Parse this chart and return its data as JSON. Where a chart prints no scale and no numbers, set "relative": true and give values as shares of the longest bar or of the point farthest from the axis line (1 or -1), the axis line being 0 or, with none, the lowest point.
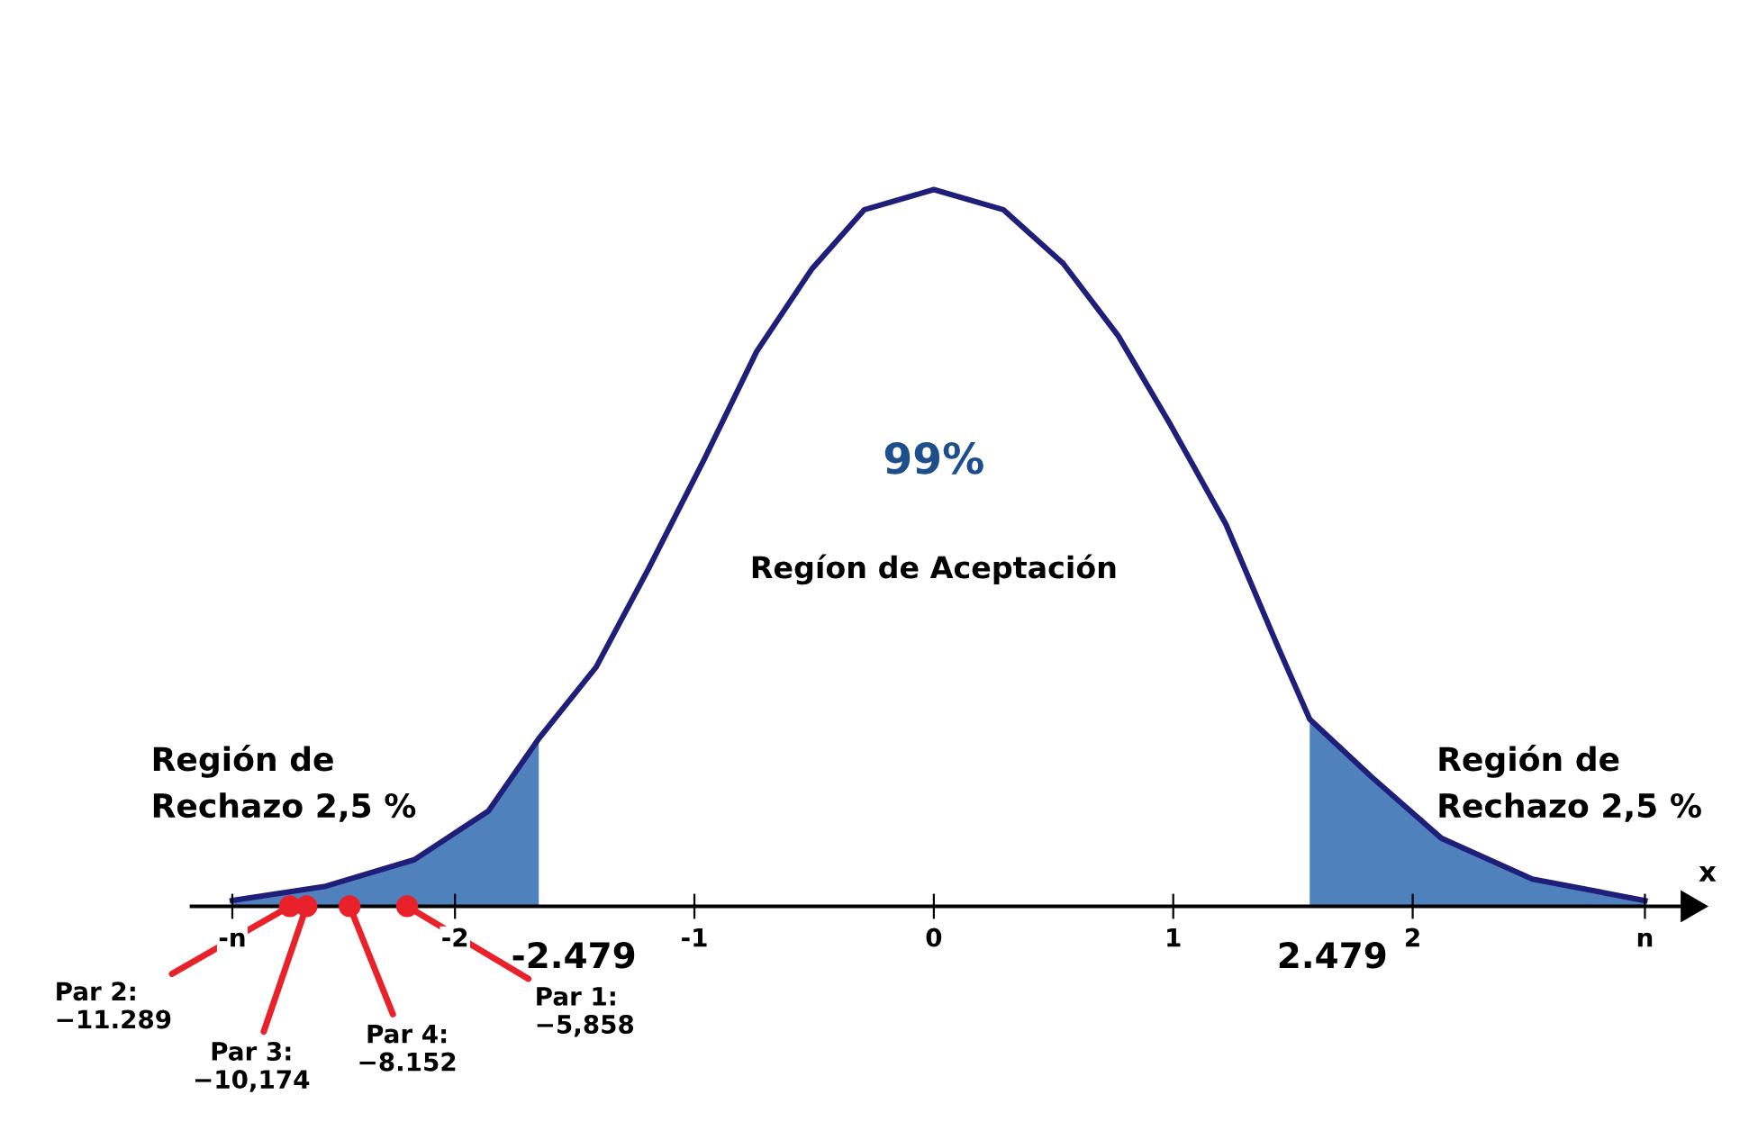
{
  "chart_data": {
    "type": "line",
    "relative": true,
    "xlabel": "x",
    "xlim": [
      -3.1,
      3.2
    ],
    "xticks": [
      {
        "value": -2.93,
        "label": "-n"
      },
      -2,
      -1,
      0,
      1,
      2,
      {
        "value": 2.97,
        "label": "n"
      }
    ],
    "grid": false,
    "line_style": "solid",
    "series": [
      {
        "type": "area",
        "color": "#4f81bd",
        "x": [
          -2.93,
          -2.54,
          -2.17,
          -1.86,
          -1.65
        ],
        "values": [
          0.008,
          0.028,
          0.065,
          0.133,
          0.234
        ]
      },
      {
        "type": "area",
        "color": "#4f81bd",
        "x": [
          1.57,
          1.82,
          2.12,
          2.5,
          2.97
        ],
        "values": [
          0.261,
          0.183,
          0.095,
          0.038,
          0.008
        ]
      },
      {
        "color": "#1f1f7a",
        "x": [
          -2.93,
          -2.54,
          -2.17,
          -1.86,
          -1.65,
          -1.41,
          -1.19,
          -0.96,
          -0.74,
          -0.51,
          -0.29,
          0,
          0.29,
          0.54,
          0.77,
          0.99,
          1.22,
          1.44,
          1.57,
          1.82,
          2.12,
          2.5,
          2.97
        ],
        "values": [
          0.008,
          0.028,
          0.065,
          0.133,
          0.234,
          0.334,
          0.472,
          0.623,
          0.774,
          0.889,
          0.972,
          1,
          0.972,
          0.897,
          0.796,
          0.671,
          0.533,
          0.36,
          0.261,
          0.183,
          0.095,
          0.038,
          0.008
        ]
      },
      {
        "type": "scatter",
        "marker": "circle",
        "color": "#e8212b",
        "x": [
          -2.2,
          -2.69,
          -2.62,
          -2.44
        ],
        "values": [
          0,
          0,
          0,
          0
        ]
      }
    ],
    "annotations": [
      "99%",
      "Regíon de Aceptación",
      "Región de\nRechazo 2,5 %",
      "Región de\nRechazo 2,5 %",
      {
        "text": "-2.479",
        "x": -1.65,
        "y": 0
      },
      {
        "text": "2.479",
        "x": 1.57,
        "y": 0
      },
      {
        "text": "Par 1:\n−5,858",
        "x": -2.2,
        "y": 0
      },
      {
        "text": "Par 2:\n−11.289",
        "x": -2.69,
        "y": 0
      },
      {
        "text": "Par 3:\n−10,174",
        "x": -2.62,
        "y": 0
      },
      {
        "text": "Par 4:\n−8.152",
        "x": -2.44,
        "y": 0
      }
    ]
  }
}
